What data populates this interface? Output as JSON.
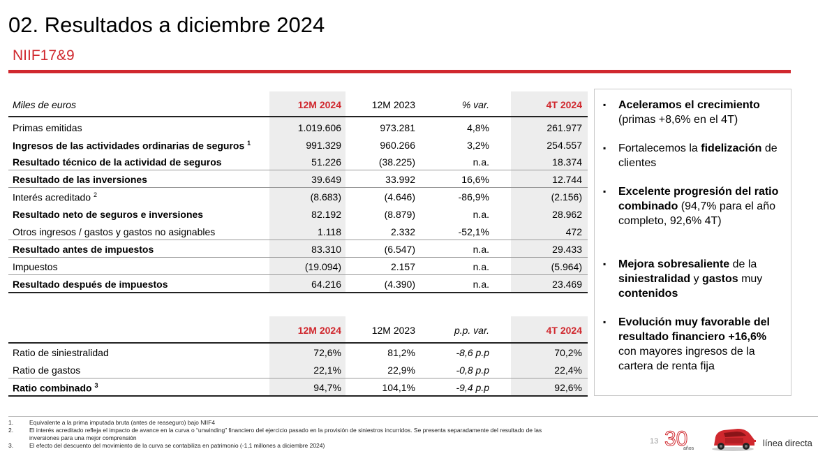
{
  "title": "02. Resultados a diciembre 2024",
  "subtitle": "NIIF17&9",
  "colors": {
    "accent": "#d0282e",
    "shade": "#ededed"
  },
  "table1": {
    "header": {
      "label": "Miles de euros",
      "c1": "12M 2024",
      "c2": "12M 2023",
      "c3": "% var.",
      "c4": "4T 2024"
    },
    "rows": [
      {
        "label": "Primas emitidas",
        "sup": "",
        "c1": "1.019.606",
        "c2": "973.281",
        "c3": "4,8%",
        "c4": "261.977",
        "bold": false
      },
      {
        "label": "Ingresos de las actividades ordinarias de seguros",
        "sup": "1",
        "c1": "991.329",
        "c2": "960.266",
        "c3": "3,2%",
        "c4": "254.557",
        "bold": true
      },
      {
        "label": "Resultado técnico de la actividad de seguros",
        "sup": "",
        "c1": "51.226",
        "c2": "(38.225)",
        "c3": "n.a.",
        "c4": "18.374",
        "bold": true
      },
      {
        "label": "Resultado de las inversiones",
        "sup": "",
        "c1": "39.649",
        "c2": "33.992",
        "c3": "16,6%",
        "c4": "12.744",
        "bold": true
      },
      {
        "label": "Interés acreditado",
        "sup": "2",
        "c1": "(8.683)",
        "c2": "(4.646)",
        "c3": "-86,9%",
        "c4": "(2.156)",
        "bold": false
      },
      {
        "label": "Resultado neto de seguros e inversiones",
        "sup": "",
        "c1": "82.192",
        "c2": "(8.879)",
        "c3": "n.a.",
        "c4": "28.962",
        "bold": true
      },
      {
        "label": "Otros ingresos / gastos y gastos no asignables",
        "sup": "",
        "c1": "1.118",
        "c2": "2.332",
        "c3": "-52,1%",
        "c4": "472",
        "bold": false
      },
      {
        "label": "Resultado antes de impuestos",
        "sup": "",
        "c1": "83.310",
        "c2": "(6.547)",
        "c3": "n.a.",
        "c4": "29.433",
        "bold": true
      },
      {
        "label": "Impuestos",
        "sup": "",
        "c1": "(19.094)",
        "c2": "2.157",
        "c3": "n.a.",
        "c4": "(5.964)",
        "bold": false
      },
      {
        "label": "Resultado después de impuestos",
        "sup": "",
        "c1": "64.216",
        "c2": "(4.390)",
        "c3": "n.a.",
        "c4": "23.469",
        "bold": true
      }
    ]
  },
  "table2": {
    "header": {
      "c1": "12M 2024",
      "c2": "12M 2023",
      "c3": "p.p. var.",
      "c4": "4T 2024"
    },
    "rows": [
      {
        "label": "Ratio de siniestralidad",
        "sup": "",
        "c1": "72,6%",
        "c2": "81,2%",
        "c3": "-8,6 p.p",
        "c4": "70,2%",
        "bold": false
      },
      {
        "label": "Ratio de gastos",
        "sup": "",
        "c1": "22,1%",
        "c2": "22,9%",
        "c3": "-0,8 p.p",
        "c4": "22,4%",
        "bold": false
      },
      {
        "label": "Ratio combinado",
        "sup": "3",
        "c1": "94,7%",
        "c2": "104,1%",
        "c3": "-9,4 p.p",
        "c4": "92,6%",
        "bold": true
      }
    ]
  },
  "highlights": [
    {
      "parts": [
        {
          "t": "Aceleramos el crecimiento",
          "b": true
        },
        {
          "t": " (primas +8,6% en el 4T)",
          "b": false
        }
      ]
    },
    {
      "parts": [
        {
          "t": "Fortalecemos la ",
          "b": false
        },
        {
          "t": "fidelización",
          "b": true
        },
        {
          "t": " de clientes",
          "b": false
        }
      ]
    },
    {
      "parts": [
        {
          "t": "Excelente progresión del ratio combinado",
          "b": true
        },
        {
          "t": " (94,7% para el año completo, 92,6% 4T)",
          "b": false
        }
      ]
    },
    {
      "parts": [
        {
          "t": "Mejora sobresaliente",
          "b": true
        },
        {
          "t": " de la ",
          "b": false
        },
        {
          "t": "siniestralidad",
          "b": true
        },
        {
          "t": " y ",
          "b": false
        },
        {
          "t": "gastos",
          "b": true
        },
        {
          "t": " muy ",
          "b": false
        },
        {
          "t": "contenidos",
          "b": true
        }
      ]
    },
    {
      "parts": [
        {
          "t": "Evolución muy favorable del resultado financiero +16,6%",
          "b": true
        },
        {
          "t": " con mayores ingresos de la cartera de renta fija",
          "b": false
        }
      ]
    }
  ],
  "footnotes": [
    {
      "n": "1.",
      "t": "Equivalente a la prima imputada bruta (antes de reaseguro) bajo NIIF4"
    },
    {
      "n": "2.",
      "t": "El interés acreditado refleja el impacto de avance en la curva o “unwinding” financiero del ejercicio pasado en la provisión de siniestros incurridos. Se presenta separadamente del resultado de las"
    },
    {
      "n": "",
      "t": "inversiones para una mejor comprensión"
    },
    {
      "n": "3.",
      "t": "El efecto del descuento del movimiento de la curva se contabiliza en patrimonio (-1,1 millones a diciembre 2024)"
    }
  ],
  "page_number": "13",
  "anniversary": {
    "number": "30",
    "word": "años"
  },
  "brand": "línea directa"
}
